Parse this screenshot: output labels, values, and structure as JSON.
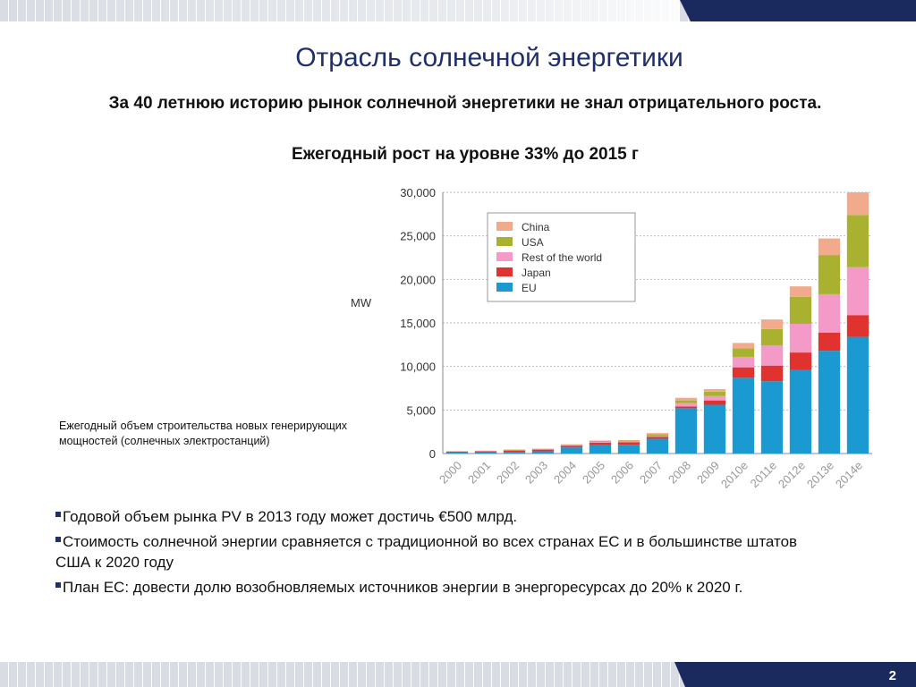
{
  "slide": {
    "title": "Отрасль солнечной энергетики",
    "subtitle1": "За 40 летнюю историю рынок солнечной энергетики  не знал отрицательного роста.",
    "subtitle2": "Ежегодный рост на уровне 33% до 2015 г",
    "caption": "Ежегодный объем строительства новых генерирующих мощностей (солнечных электростанций)",
    "bullets": [
      "Годовой объем рынка PV в 2013 году может достичь €500 млрд.",
      "Стоимость солнечной энергии сравняется с традиционной во всех странах ЕС и в большинстве штатов США к 2020 году",
      "План ЕС: довести долю возобновляемых источников энергии в энергоресурсах до 20% к 2020 г."
    ],
    "page_number": "2"
  },
  "chart_data": {
    "type": "bar",
    "stacked": true,
    "ylabel": "MW",
    "ylim": [
      0,
      30000
    ],
    "yticks": [
      "0",
      "5,000",
      "10,000",
      "15,000",
      "20,000",
      "25,000",
      "30,000"
    ],
    "categories": [
      "2000",
      "2001",
      "2002",
      "2003",
      "2004",
      "2005",
      "2006",
      "2007",
      "2008",
      "2009",
      "2010e",
      "2011e",
      "2012e",
      "2013e",
      "2014e"
    ],
    "legend_position": "top-left",
    "series": [
      {
        "name": "EU",
        "color": "#1a9ad0",
        "values": [
          100,
          150,
          200,
          250,
          700,
          950,
          1000,
          1700,
          5200,
          5600,
          8700,
          8300,
          9600,
          11800,
          13400
        ]
      },
      {
        "name": "Japan",
        "color": "#e0322e",
        "values": [
          100,
          100,
          150,
          200,
          200,
          300,
          300,
          200,
          200,
          500,
          1200,
          1800,
          2000,
          2100,
          2500
        ]
      },
      {
        "name": "Rest of the world",
        "color": "#f49ac8",
        "values": [
          50,
          50,
          50,
          50,
          100,
          100,
          100,
          100,
          400,
          500,
          1200,
          2300,
          3300,
          4400,
          5500
        ]
      },
      {
        "name": "USA",
        "color": "#a8b230",
        "values": [
          20,
          20,
          50,
          50,
          50,
          100,
          100,
          200,
          300,
          500,
          1000,
          1900,
          3100,
          4500,
          6000
        ]
      },
      {
        "name": "China",
        "color": "#f2aa8c",
        "values": [
          10,
          10,
          10,
          10,
          20,
          50,
          50,
          150,
          300,
          300,
          600,
          1100,
          1200,
          1900,
          2600
        ]
      }
    ]
  }
}
